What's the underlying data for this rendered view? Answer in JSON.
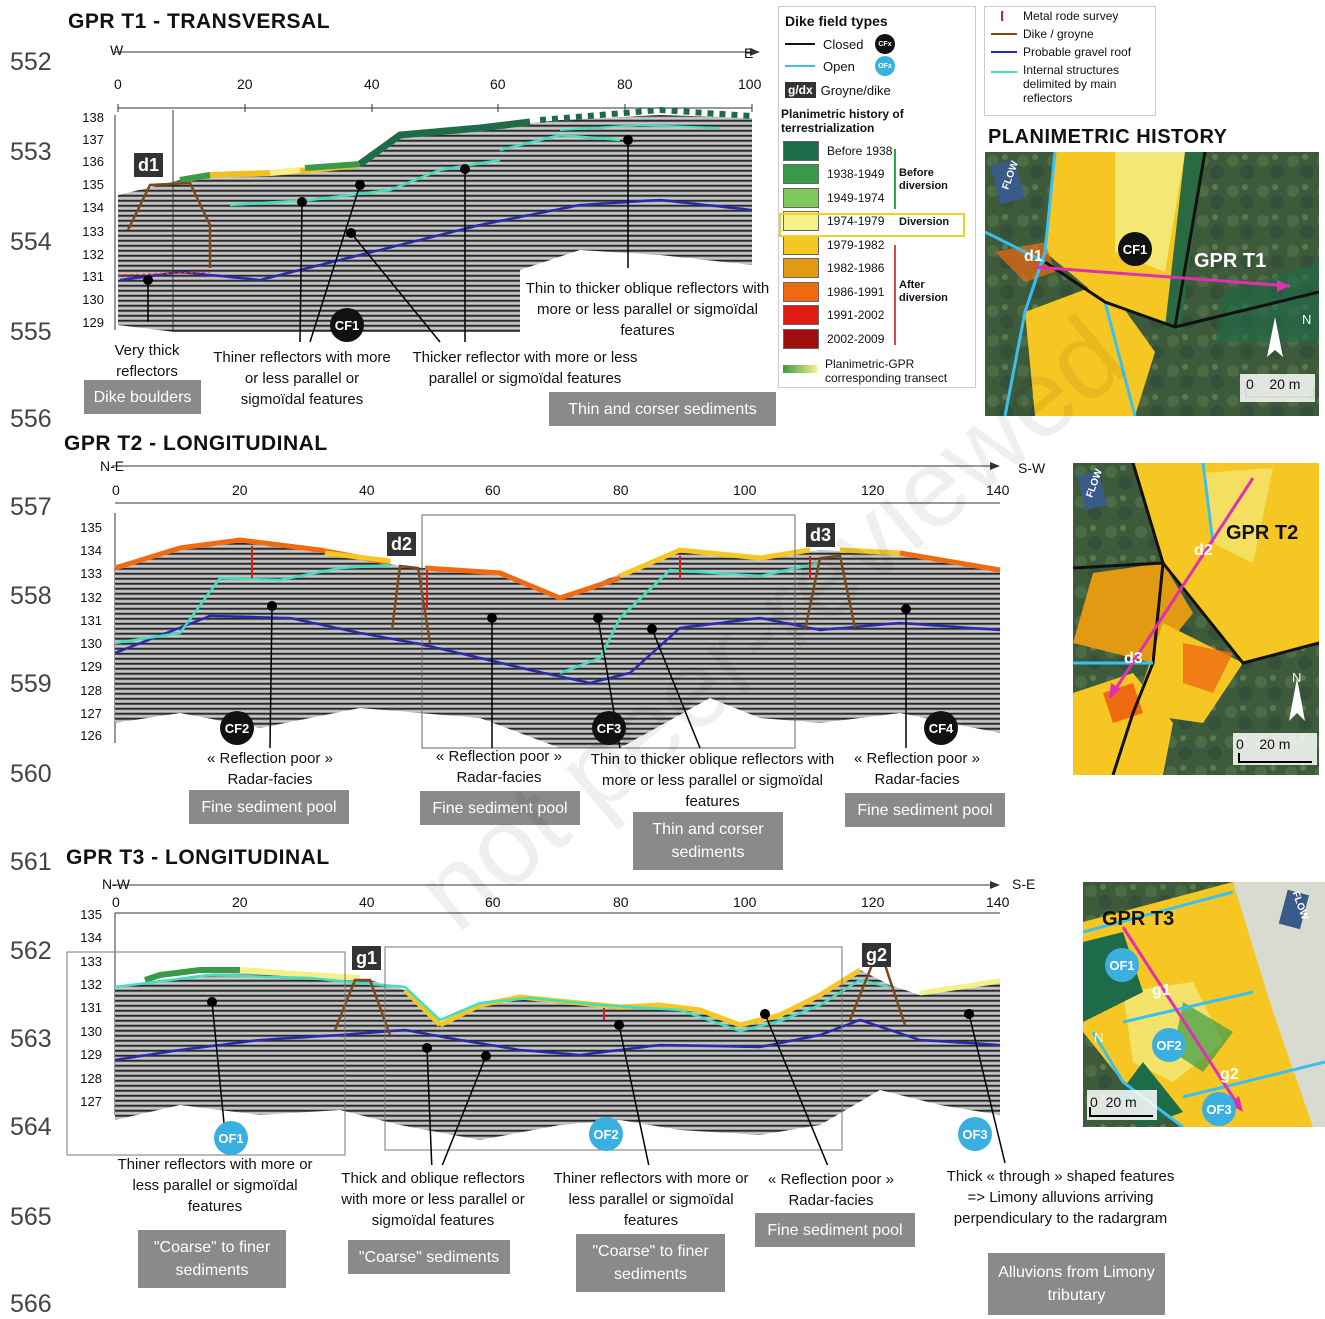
{
  "line_numbers": [
    "552",
    "553",
    "554",
    "555",
    "556",
    "557",
    "558",
    "559",
    "560",
    "561",
    "562",
    "563",
    "564",
    "565",
    "566"
  ],
  "watermark": "not peer-reviewed",
  "t1": {
    "title": "GPR T1 - TRANSVERSAL",
    "dir_left": "W",
    "dir_right": "E",
    "x_ticks": [
      "0",
      "20",
      "40",
      "60",
      "80",
      "100"
    ],
    "y_ticks": [
      "138",
      "137",
      "136",
      "135",
      "134",
      "133",
      "132",
      "131",
      "130",
      "129"
    ],
    "dike_label": "d1",
    "badge": "CF1",
    "ann_very_thick": "Very thick reflectors",
    "ann_thiner": "Thiner reflectors with more or less parallel or sigmoïdal features",
    "ann_thicker": "Thicker reflector with more or less parallel or sigmoïdal features",
    "ann_oblique": "Thin to thicker oblique reflectors with more or less parallel or sigmoïdal features",
    "box_dike": "Dike boulders",
    "box_thin": "Thin and corser sediments"
  },
  "legend1": {
    "title": "Dike field types",
    "closed": "Closed",
    "closed_badge": "CFx",
    "open": "Open",
    "open_badge": "OFx",
    "groyne_tag": "g/dx",
    "groyne": "Groyne/dike",
    "history_title": "Planimetric history of terrestrialization",
    "periods": [
      {
        "label": "Before 1938",
        "color": "#1e6b4a"
      },
      {
        "label": "1938-1949",
        "color": "#3a9a4a"
      },
      {
        "label": "1949-1974",
        "color": "#7cc85a"
      },
      {
        "label": "1974-1979",
        "color": "#f4f08a"
      },
      {
        "label": "1979-1982",
        "color": "#f6c623"
      },
      {
        "label": "1982-1986",
        "color": "#e29a12"
      },
      {
        "label": "1986-1991",
        "color": "#f06a12"
      },
      {
        "label": "1991-2002",
        "color": "#e01b12"
      },
      {
        "label": "2002-2009",
        "color": "#a00d0d"
      }
    ],
    "before": "Before diversion",
    "diversion": "Diversion",
    "after": "After diversion",
    "transect": "Planimetric-GPR corresponding transect"
  },
  "legend2": {
    "metal": "Metal rode survey",
    "dike": "Dike / groyne",
    "gravel": "Probable gravel roof",
    "internal": "Internal structures delimited by main reflectors"
  },
  "map1": {
    "title": "PLANIMETRIC HISTORY",
    "flow": "FLOW",
    "d1": "d1",
    "cf1": "CF1",
    "gpr": "GPR T1",
    "north": "N",
    "scale": "0    20 m"
  },
  "t2": {
    "title": "GPR T2 - LONGITUDINAL",
    "dir_left": "N-E",
    "dir_right": "S-W",
    "x_ticks": [
      "0",
      "20",
      "40",
      "60",
      "80",
      "100",
      "120",
      "140"
    ],
    "y_ticks": [
      "135",
      "134",
      "133",
      "132",
      "131",
      "130",
      "129",
      "128",
      "127",
      "126"
    ],
    "d2": "d2",
    "d3": "d3",
    "badges": [
      "CF2",
      "CF3",
      "CF4"
    ],
    "ann_rp1": "« Reflection poor » Radar-facies",
    "ann_rp2": "« Reflection poor » Radar-facies",
    "ann_oblique": "Thin to thicker oblique reflectors with more or less parallel or sigmoïdal features",
    "ann_rp3": "« Reflection poor » Radar-facies",
    "box1": "Fine sediment pool",
    "box2": "Fine sediment pool",
    "box3": "Thin and corser sediments",
    "box4": "Fine sediment pool"
  },
  "map2": {
    "flow": "FLOW",
    "gpr": "GPR T2",
    "d2": "d2",
    "d3": "d3",
    "north": "N",
    "scale": "0    20 m"
  },
  "t3": {
    "title": "GPR T3 - LONGITUDINAL",
    "dir_left": "N-W",
    "dir_right": "S-E",
    "x_ticks": [
      "0",
      "20",
      "40",
      "60",
      "80",
      "100",
      "120",
      "140"
    ],
    "y_ticks": [
      "135",
      "134",
      "133",
      "132",
      "131",
      "130",
      "129",
      "128",
      "127"
    ],
    "g1": "g1",
    "g2": "g2",
    "badges": [
      "OF1",
      "OF2",
      "OF3"
    ],
    "ann1": "Thiner reflectors with more or less parallel or sigmoïdal features",
    "ann2": "Thick and oblique reflectors with more or less parallel or sigmoïdal features",
    "ann3": "Thiner reflectors with more or less parallel or sigmoïdal features",
    "ann4": "« Reflection poor » Radar-facies",
    "ann5": "Thick « through » shaped features => Limony alluvions arriving perpendiculary to the radargram",
    "box1": "\"Coarse\" to finer sediments",
    "box2": "\"Coarse\" sediments",
    "box3": "\"Coarse\" to finer sediments",
    "box4": "Fine sediment pool",
    "box5": "Alluvions from Limony tributary"
  },
  "map3": {
    "flow": "FLOW",
    "gpr": "GPR T3",
    "of1": "OF1",
    "of2": "OF2",
    "of3": "OF3",
    "g1": "g1",
    "g2": "g2",
    "north": "N",
    "scale": "0  20 m"
  }
}
